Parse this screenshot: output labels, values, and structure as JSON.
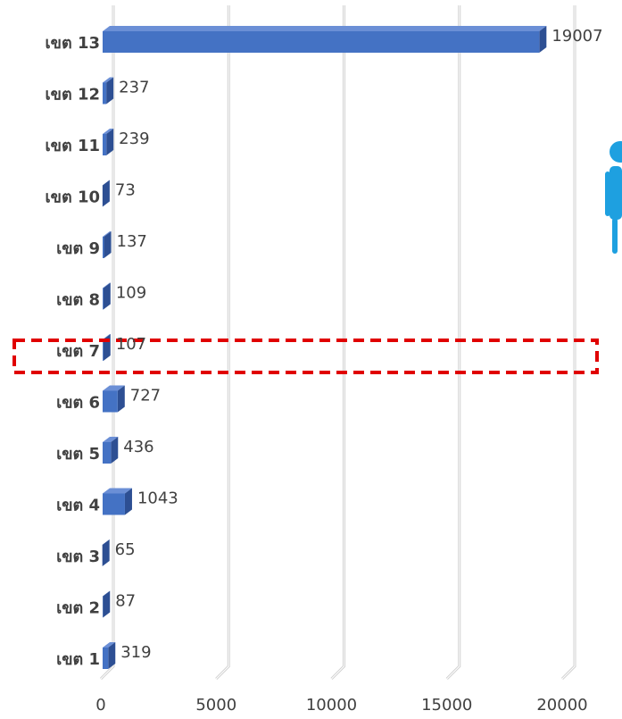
{
  "chart_data": {
    "type": "bar3d",
    "orientation": "horizontal",
    "categories": [
      "เขต 1",
      "เขต 2",
      "เขต 3",
      "เขต 4",
      "เขต 5",
      "เขต 6",
      "เขต 7",
      "เขต 8",
      "เขต 9",
      "เขต 10",
      "เขต 11",
      "เขต 12",
      "เขต 13"
    ],
    "values": [
      319,
      87,
      65,
      1043,
      436,
      727,
      107,
      109,
      137,
      73,
      239,
      237,
      19007
    ],
    "color": "#4472c4",
    "xlim": [
      0,
      20000
    ],
    "xticks": [
      0,
      5000,
      10000,
      15000,
      20000
    ],
    "grid": true
  }
}
